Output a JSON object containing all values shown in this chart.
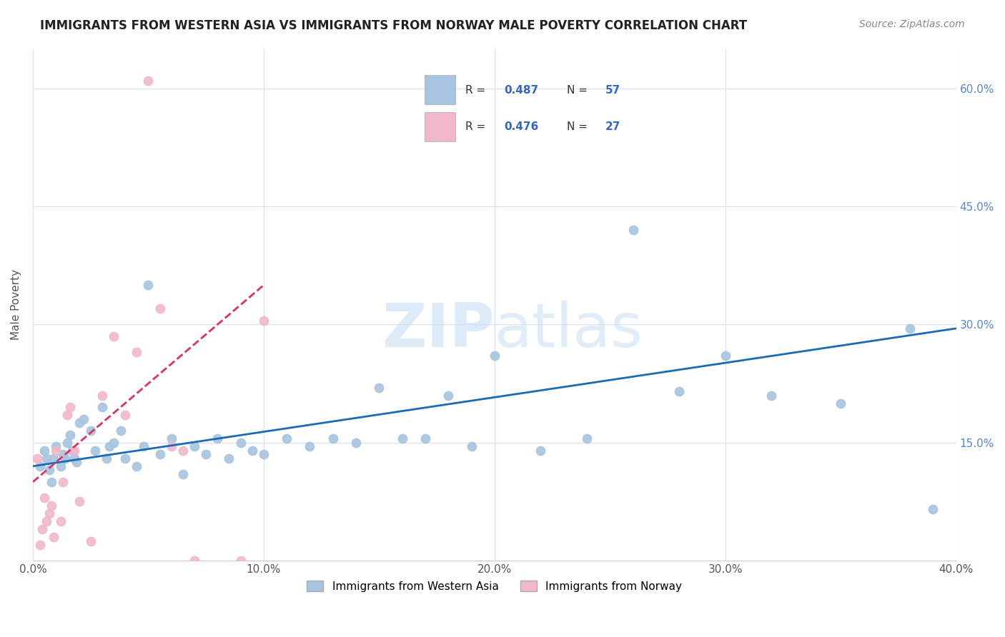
{
  "title": "IMMIGRANTS FROM WESTERN ASIA VS IMMIGRANTS FROM NORWAY MALE POVERTY CORRELATION CHART",
  "source": "Source: ZipAtlas.com",
  "ylabel": "Male Poverty",
  "ytick_labels": [
    "15.0%",
    "30.0%",
    "45.0%",
    "60.0%"
  ],
  "ytick_values": [
    0.15,
    0.3,
    0.45,
    0.6
  ],
  "xtick_values": [
    0.0,
    0.1,
    0.2,
    0.3,
    0.4
  ],
  "xtick_labels": [
    "0.0%",
    "10.0%",
    "20.0%",
    "30.0%",
    "40.0%"
  ],
  "xlim": [
    0.0,
    0.4
  ],
  "ylim": [
    0.0,
    0.65
  ],
  "background_color": "#ffffff",
  "grid_color": "#dde3f0",
  "series1_label": "Immigrants from Western Asia",
  "series1_R": "0.487",
  "series1_N": "57",
  "series1_color": "#a8c4e0",
  "series1_line_color": "#1a6bb5",
  "series2_label": "Immigrants from Norway",
  "series2_R": "0.476",
  "series2_N": "27",
  "series2_color": "#f0b8c8",
  "series2_line_color": "#e03060",
  "series1_x": [
    0.003,
    0.005,
    0.006,
    0.007,
    0.008,
    0.009,
    0.01,
    0.012,
    0.013,
    0.014,
    0.015,
    0.016,
    0.017,
    0.018,
    0.019,
    0.02,
    0.022,
    0.025,
    0.027,
    0.03,
    0.032,
    0.033,
    0.035,
    0.038,
    0.04,
    0.045,
    0.048,
    0.05,
    0.055,
    0.06,
    0.065,
    0.07,
    0.075,
    0.08,
    0.085,
    0.09,
    0.095,
    0.1,
    0.11,
    0.12,
    0.13,
    0.14,
    0.15,
    0.16,
    0.17,
    0.18,
    0.19,
    0.2,
    0.22,
    0.24,
    0.26,
    0.28,
    0.3,
    0.32,
    0.35,
    0.38,
    0.39
  ],
  "series1_y": [
    0.12,
    0.14,
    0.13,
    0.115,
    0.1,
    0.13,
    0.145,
    0.12,
    0.135,
    0.13,
    0.15,
    0.16,
    0.14,
    0.13,
    0.125,
    0.175,
    0.18,
    0.165,
    0.14,
    0.195,
    0.13,
    0.145,
    0.15,
    0.165,
    0.13,
    0.12,
    0.145,
    0.35,
    0.135,
    0.155,
    0.11,
    0.145,
    0.135,
    0.155,
    0.13,
    0.15,
    0.14,
    0.135,
    0.155,
    0.145,
    0.155,
    0.15,
    0.22,
    0.155,
    0.155,
    0.21,
    0.145,
    0.26,
    0.14,
    0.155,
    0.42,
    0.215,
    0.26,
    0.21,
    0.2,
    0.295,
    0.065
  ],
  "series2_x": [
    0.002,
    0.003,
    0.004,
    0.005,
    0.006,
    0.007,
    0.008,
    0.009,
    0.01,
    0.012,
    0.013,
    0.015,
    0.016,
    0.018,
    0.02,
    0.025,
    0.03,
    0.035,
    0.04,
    0.045,
    0.05,
    0.055,
    0.06,
    0.065,
    0.07,
    0.09,
    0.1
  ],
  "series2_y": [
    0.13,
    0.02,
    0.04,
    0.08,
    0.05,
    0.06,
    0.07,
    0.03,
    0.14,
    0.05,
    0.1,
    0.185,
    0.195,
    0.14,
    0.075,
    0.025,
    0.21,
    0.285,
    0.185,
    0.265,
    0.61,
    0.32,
    0.145,
    0.14,
    0.0,
    0.0,
    0.305
  ],
  "trendline1_x": [
    0.0,
    0.4
  ],
  "trendline1_y": [
    0.12,
    0.295
  ],
  "trendline2_x": [
    0.0,
    0.1
  ],
  "trendline2_y": [
    0.1,
    0.35
  ],
  "legend_R1": "0.487",
  "legend_N1": "57",
  "legend_R2": "0.476",
  "legend_N2": "27",
  "watermark_zip": "ZIP",
  "watermark_atlas": "atlas",
  "watermark_color_zip": "#cce0f5",
  "watermark_color_atlas": "#c8dff5"
}
